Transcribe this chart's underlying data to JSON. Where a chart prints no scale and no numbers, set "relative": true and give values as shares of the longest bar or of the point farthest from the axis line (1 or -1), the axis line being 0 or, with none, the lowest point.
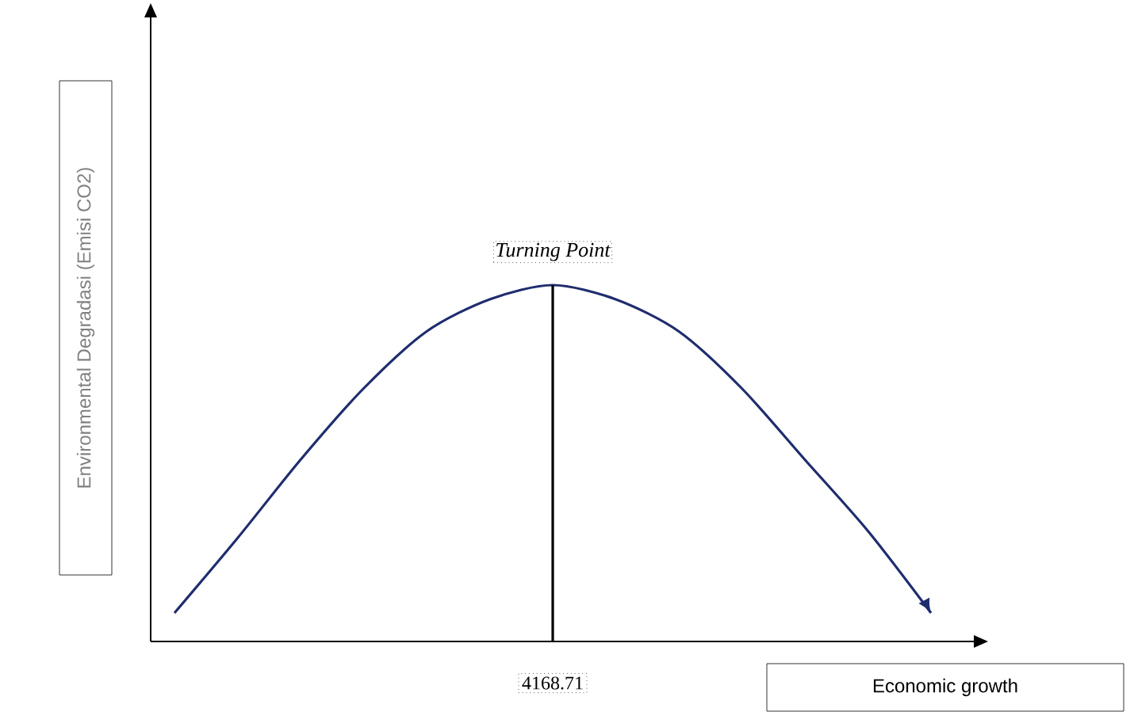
{
  "chart_data": {
    "type": "line",
    "relative": true,
    "xlabel": "Economic growth",
    "ylabel": "Environmental Degradasi (Emisi CO2)",
    "categories": [
      null,
      null,
      null,
      null,
      null,
      null,
      null,
      null,
      null,
      null,
      null,
      null,
      null
    ],
    "series": [
      {
        "color": "#1f2d6e",
        "values": [
          0.08,
          0.29,
          0.51,
          0.71,
          0.87,
          0.96,
          1,
          0.96,
          0.87,
          0.71,
          0.51,
          0.31,
          0.08
        ]
      }
    ],
    "annotations": [
      "Turning Point",
      "4168.71"
    ],
    "marker": "none",
    "line_style": "solid"
  }
}
